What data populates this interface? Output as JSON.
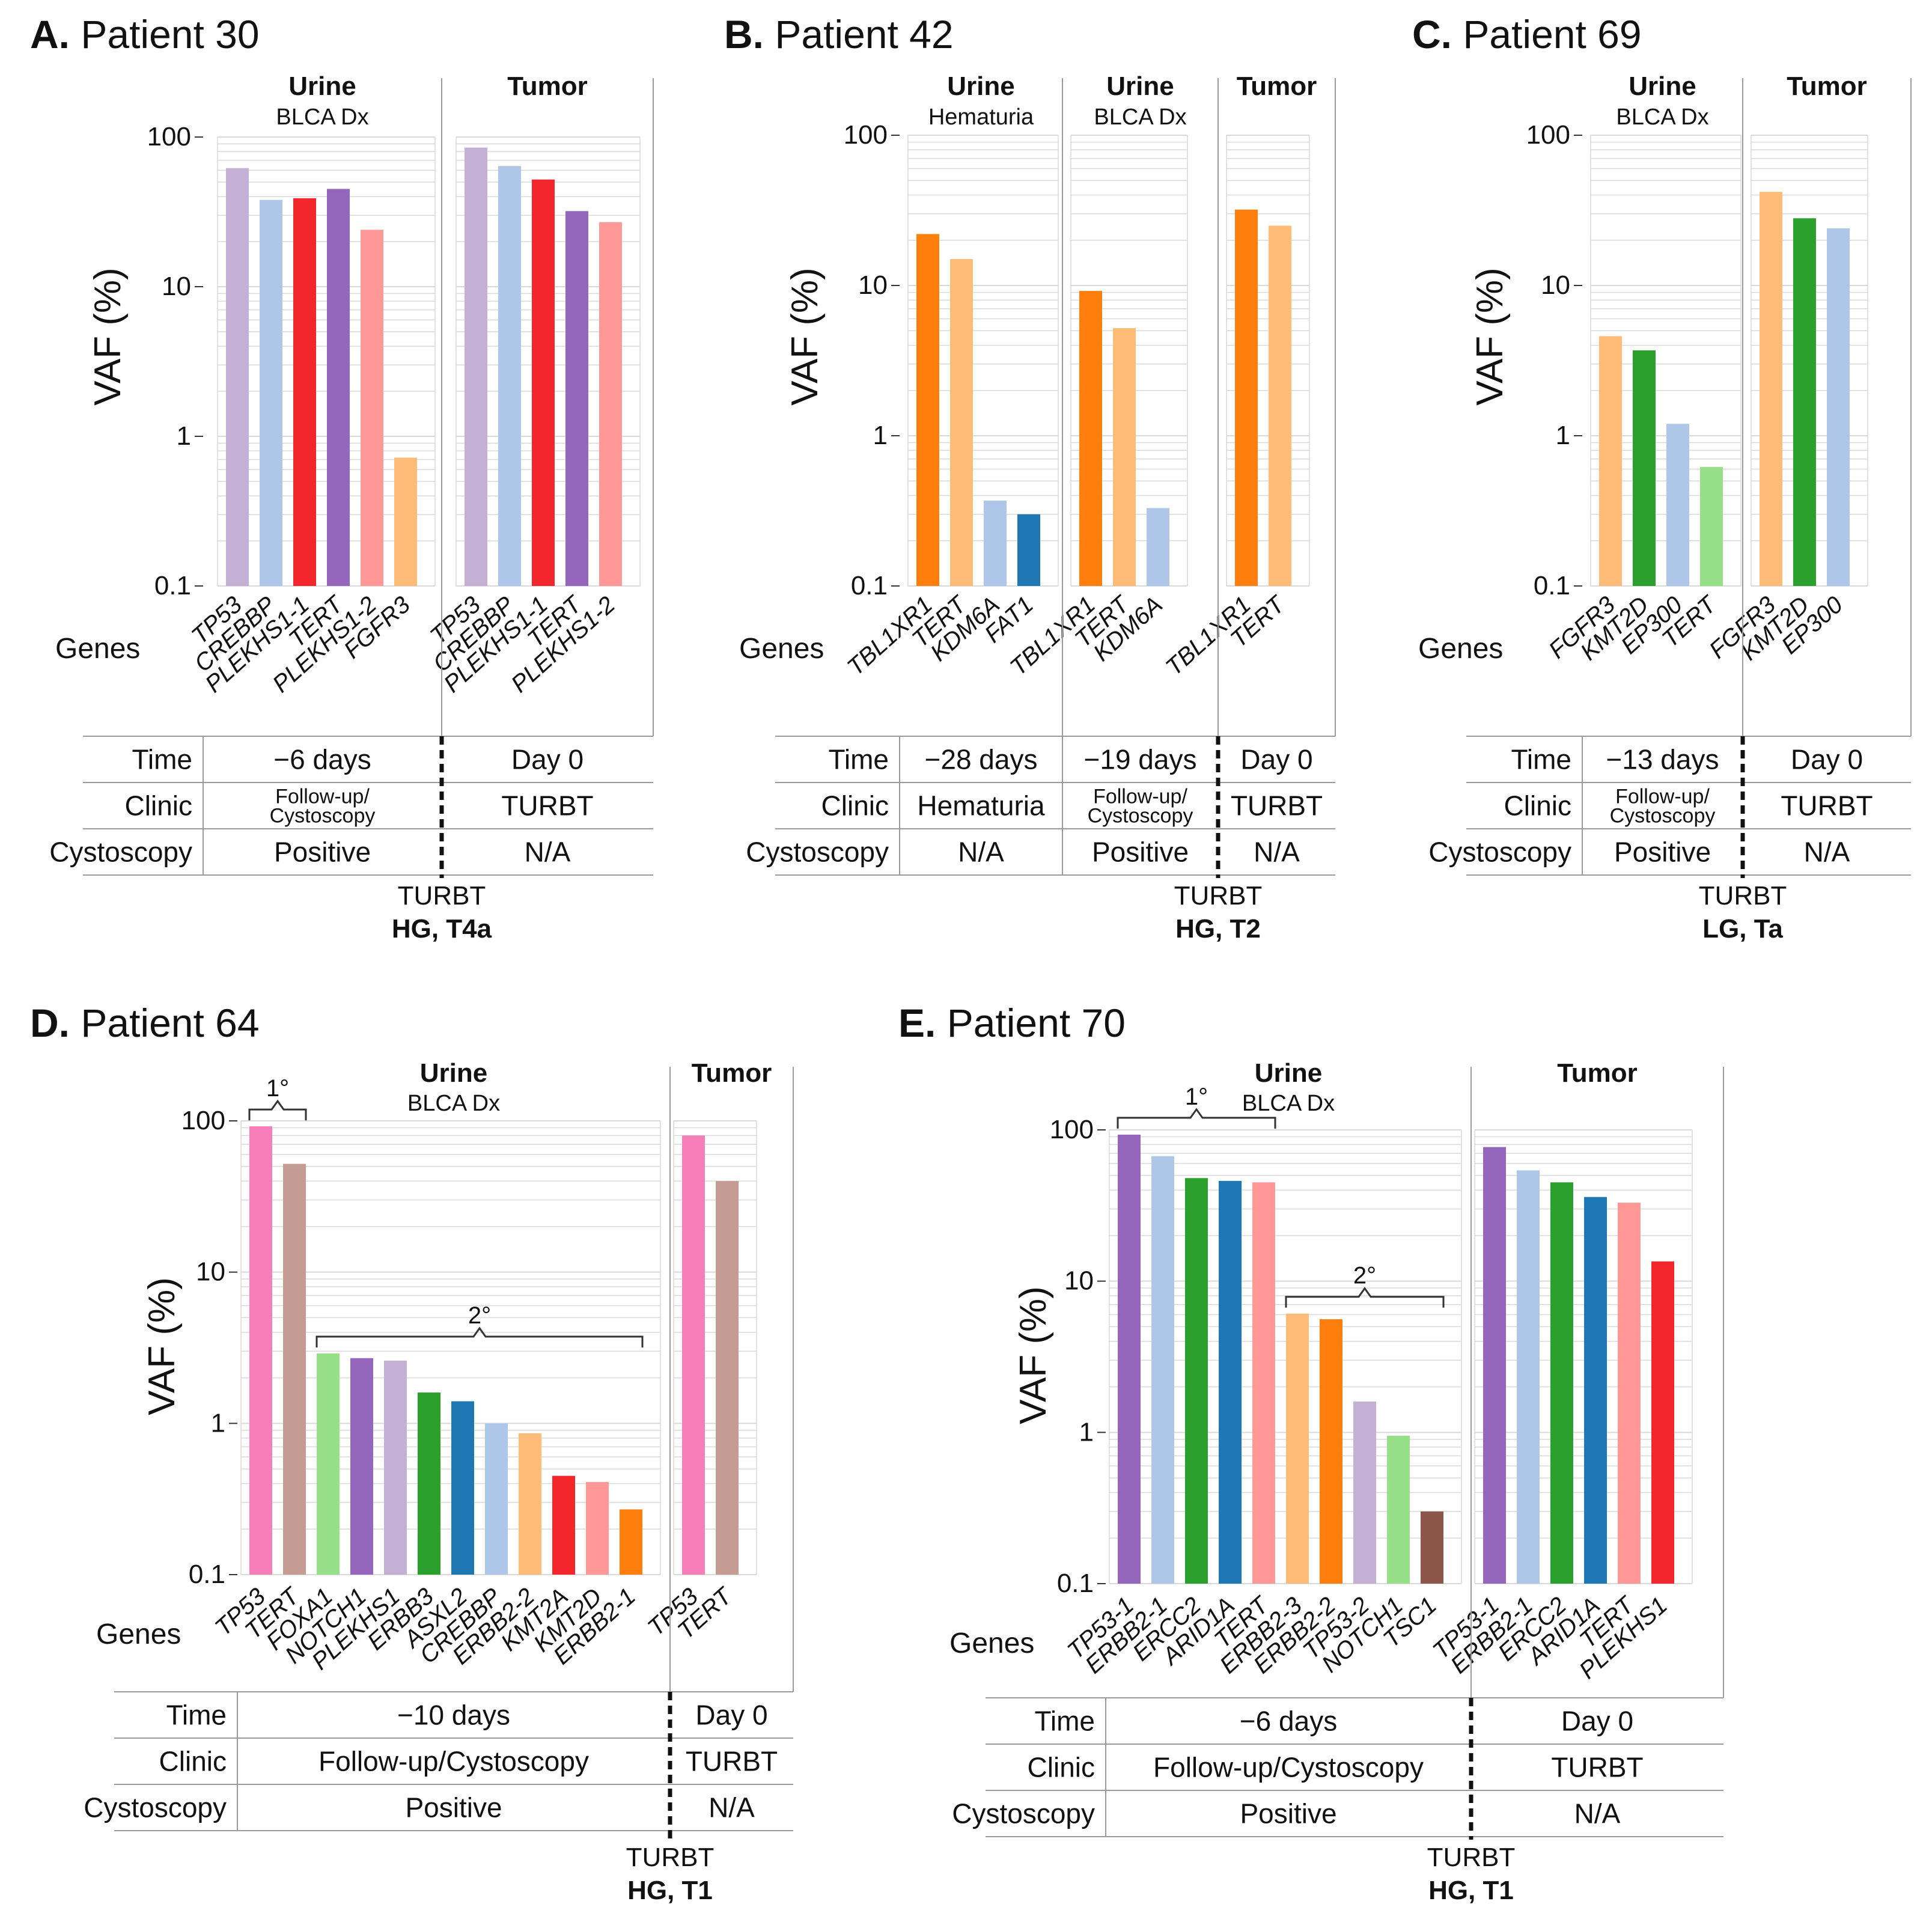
{
  "figure_labels": {
    "y_axis_label": "VAF (%)",
    "genes_label": "Genes",
    "row_labels": [
      "Time",
      "Clinic",
      "Cystoscopy"
    ],
    "turbt_label": "TURBT"
  },
  "chart_data": [
    {
      "id": "A",
      "type": "bar",
      "panel_letter": "A.",
      "panel_title": "Patient 30",
      "y_scale": "log",
      "ylim": [
        0.1,
        100
      ],
      "y_ticks": [
        "0.1",
        "1",
        "10",
        "100"
      ],
      "ylabel": "VAF (%)",
      "groups": [
        {
          "title": "Urine",
          "subtitle": "BLCA Dx",
          "genes": [
            "TP53",
            "CREBBP",
            "PLEKHS1-1",
            "TERT",
            "PLEKHS1-2",
            "FGFR3"
          ],
          "values": [
            62,
            38,
            39,
            45,
            24,
            0.72
          ],
          "colors": [
            "#c5b0d5",
            "#aec7e8",
            "#f3262b",
            "#9467bd",
            "#ff9896",
            "#ffbb78"
          ]
        },
        {
          "title": "Tumor",
          "subtitle": "",
          "genes": [
            "TP53",
            "CREBBP",
            "PLEKHS1-1",
            "TERT",
            "PLEKHS1-2"
          ],
          "values": [
            85,
            64,
            52,
            32,
            27
          ],
          "colors": [
            "#c5b0d5",
            "#aec7e8",
            "#f3262b",
            "#9467bd",
            "#ff9896"
          ]
        }
      ],
      "table": {
        "columns": [
          {
            "time": "−6 days",
            "clinic": "Follow-up/\nCystoscopy",
            "cystoscopy": "Positive"
          },
          {
            "time": "Day 0",
            "clinic": "TURBT",
            "cystoscopy": "N/A"
          }
        ]
      },
      "turbt": {
        "label": "TURBT",
        "grade": "HG, T4a"
      }
    },
    {
      "id": "B",
      "type": "bar",
      "panel_letter": "B.",
      "panel_title": "Patient 42",
      "y_scale": "log",
      "ylim": [
        0.1,
        100
      ],
      "y_ticks": [
        "0.1",
        "1",
        "10",
        "100"
      ],
      "ylabel": "VAF (%)",
      "groups": [
        {
          "title": "Urine",
          "subtitle": "Hematuria",
          "genes": [
            "TBL1XR1",
            "TERT",
            "KDM6A",
            "FAT1"
          ],
          "values": [
            22,
            15,
            0.37,
            0.3
          ],
          "colors": [
            "#ff7f0e",
            "#ffbb78",
            "#aec7e8",
            "#1f77b4"
          ]
        },
        {
          "title": "Urine",
          "subtitle": "BLCA Dx",
          "genes": [
            "TBL1XR1",
            "TERT",
            "KDM6A"
          ],
          "values": [
            9.2,
            5.2,
            0.33
          ],
          "colors": [
            "#ff7f0e",
            "#ffbb78",
            "#aec7e8"
          ]
        },
        {
          "title": "Tumor",
          "subtitle": "",
          "genes": [
            "TBL1XR1",
            "TERT"
          ],
          "values": [
            32,
            25
          ],
          "colors": [
            "#ff7f0e",
            "#ffbb78"
          ]
        }
      ],
      "table": {
        "columns": [
          {
            "time": "−28 days",
            "clinic": "Hematuria",
            "cystoscopy": "N/A"
          },
          {
            "time": "−19 days",
            "clinic": "Follow-up/\nCystoscopy",
            "cystoscopy": "Positive"
          },
          {
            "time": "Day 0",
            "clinic": "TURBT",
            "cystoscopy": "N/A"
          }
        ]
      },
      "turbt": {
        "label": "TURBT",
        "grade": "HG, T2"
      }
    },
    {
      "id": "C",
      "type": "bar",
      "panel_letter": "C.",
      "panel_title": "Patient 69",
      "y_scale": "log",
      "ylim": [
        0.1,
        100
      ],
      "y_ticks": [
        "0.1",
        "1",
        "10",
        "100"
      ],
      "ylabel": "VAF (%)",
      "groups": [
        {
          "title": "Urine",
          "subtitle": "BLCA Dx",
          "genes": [
            "FGFR3",
            "KMT2D",
            "EP300",
            "TERT"
          ],
          "values": [
            4.6,
            3.7,
            1.2,
            0.62
          ],
          "colors": [
            "#ffbb78",
            "#2ca02c",
            "#aec7e8",
            "#98df8a"
          ]
        },
        {
          "title": "Tumor",
          "subtitle": "",
          "genes": [
            "FGFR3",
            "KMT2D",
            "EP300"
          ],
          "values": [
            42,
            28,
            24
          ],
          "colors": [
            "#ffbb78",
            "#2ca02c",
            "#aec7e8"
          ]
        }
      ],
      "table": {
        "columns": [
          {
            "time": "−13 days",
            "clinic": "Follow-up/\nCystoscopy",
            "cystoscopy": "Positive"
          },
          {
            "time": "Day 0",
            "clinic": "TURBT",
            "cystoscopy": "N/A"
          }
        ]
      },
      "turbt": {
        "label": "TURBT",
        "grade": "LG, Ta"
      }
    },
    {
      "id": "D",
      "type": "bar",
      "panel_letter": "D.",
      "panel_title": "Patient 64",
      "y_scale": "log",
      "ylim": [
        0.1,
        100
      ],
      "y_ticks": [
        "0.1",
        "1",
        "10",
        "100"
      ],
      "ylabel": "VAF (%)",
      "groups": [
        {
          "title": "Urine",
          "subtitle": "BLCA Dx",
          "genes": [
            "TP53",
            "TERT",
            "FOXA1",
            "NOTCH1",
            "PLEKHS1",
            "ERBB3",
            "ASXL2",
            "CREBBP",
            "ERBB2-2",
            "KMT2A",
            "KMT2D",
            "ERBB2-1"
          ],
          "values": [
            92,
            52,
            2.9,
            2.7,
            2.6,
            1.6,
            1.4,
            1.0,
            0.86,
            0.45,
            0.41,
            0.27
          ],
          "colors": [
            "#f77eb9",
            "#c49c94",
            "#98df8a",
            "#9467bd",
            "#c5b0d5",
            "#2ca02c",
            "#1f77b4",
            "#aec7e8",
            "#ffbb78",
            "#f3262b",
            "#ff9896",
            "#ff7f0e"
          ],
          "brackets": [
            {
              "label": "1°",
              "from": 0,
              "to": 1
            },
            {
              "label": "2°",
              "from": 2,
              "to": 11
            }
          ]
        },
        {
          "title": "Tumor",
          "subtitle": "",
          "genes": [
            "TP53",
            "TERT"
          ],
          "values": [
            80,
            40
          ],
          "colors": [
            "#f77eb9",
            "#c49c94"
          ]
        }
      ],
      "table": {
        "columns": [
          {
            "time": "−10 days",
            "clinic": "Follow-up/Cystoscopy",
            "cystoscopy": "Positive"
          },
          {
            "time": "Day 0",
            "clinic": "TURBT",
            "cystoscopy": "N/A"
          }
        ]
      },
      "turbt": {
        "label": "TURBT",
        "grade": "HG, T1"
      }
    },
    {
      "id": "E",
      "type": "bar",
      "panel_letter": "E.",
      "panel_title": "Patient 70",
      "y_scale": "log",
      "ylim": [
        0.1,
        100
      ],
      "y_ticks": [
        "0.1",
        "1",
        "10",
        "100"
      ],
      "ylabel": "VAF (%)",
      "groups": [
        {
          "title": "Urine",
          "subtitle": "BLCA Dx",
          "genes": [
            "TP53-1",
            "ERBB2-1",
            "ERCC2",
            "ARID1A",
            "TERT",
            "ERBB2-3",
            "ERBB2-2",
            "TP53-2",
            "NOTCH1",
            "TSC1"
          ],
          "values": [
            93,
            67,
            48,
            46,
            45,
            6.1,
            5.6,
            1.6,
            0.95,
            0.3
          ],
          "colors": [
            "#9467bd",
            "#aec7e8",
            "#2ca02c",
            "#1f77b4",
            "#ff9896",
            "#ffbb78",
            "#ff7f0e",
            "#c5b0d5",
            "#98df8a",
            "#8c564b"
          ],
          "brackets": [
            {
              "label": "1°",
              "from": 0,
              "to": 4
            },
            {
              "label": "2°",
              "from": 5,
              "to": 9
            }
          ]
        },
        {
          "title": "Tumor",
          "subtitle": "",
          "genes": [
            "TP53-1",
            "ERBB2-1",
            "ERCC2",
            "ARID1A",
            "TERT",
            "PLEKHS1"
          ],
          "values": [
            77,
            54,
            45,
            36,
            33,
            13.5
          ],
          "colors": [
            "#9467bd",
            "#aec7e8",
            "#2ca02c",
            "#1f77b4",
            "#ff9896",
            "#f3262b"
          ]
        }
      ],
      "table": {
        "columns": [
          {
            "time": "−6 days",
            "clinic": "Follow-up/Cystoscopy",
            "cystoscopy": "Positive"
          },
          {
            "time": "Day 0",
            "clinic": "TURBT",
            "cystoscopy": "N/A"
          }
        ]
      },
      "turbt": {
        "label": "TURBT",
        "grade": "HG, T1"
      }
    }
  ]
}
